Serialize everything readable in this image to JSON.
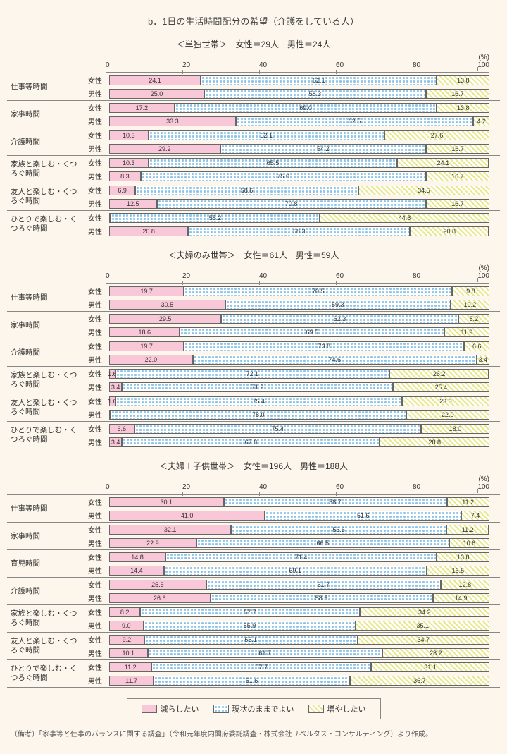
{
  "title": "b．1日の生活時間配分の希望（介護をしている人）",
  "pctLabel": "(%)",
  "axisTicks": [
    "0",
    "20",
    "40",
    "60",
    "80",
    "100"
  ],
  "legend": [
    "減らしたい",
    "現状のままでよい",
    "増やしたい"
  ],
  "note": "（備考）「家事等と仕事のバランスに関する調査」（令和元年度内閣府委託調査・株式会社リベルタス・コンサルティング）より作成。",
  "panels": [
    {
      "subtitle": "＜単独世帯＞　女性＝29人　男性＝24人",
      "cats": [
        {
          "label": "仕事等時間",
          "rows": [
            {
              "g": "女性",
              "v": [
                24.1,
                62.1,
                13.8
              ]
            },
            {
              "g": "男性",
              "v": [
                25.0,
                58.3,
                16.7
              ]
            }
          ]
        },
        {
          "label": "家事時間",
          "rows": [
            {
              "g": "女性",
              "v": [
                17.2,
                69.0,
                13.8
              ]
            },
            {
              "g": "男性",
              "v": [
                33.3,
                62.5,
                4.2
              ]
            }
          ]
        },
        {
          "label": "介護時間",
          "rows": [
            {
              "g": "女性",
              "v": [
                10.3,
                62.1,
                27.6
              ]
            },
            {
              "g": "男性",
              "v": [
                29.2,
                54.2,
                16.7
              ]
            }
          ]
        },
        {
          "label": "家族と楽しむ・くつろぐ時間",
          "rows": [
            {
              "g": "女性",
              "v": [
                10.3,
                65.5,
                24.1
              ]
            },
            {
              "g": "男性",
              "v": [
                8.3,
                75.0,
                16.7
              ]
            }
          ]
        },
        {
          "label": "友人と楽しむ・くつろぐ時間",
          "rows": [
            {
              "g": "女性",
              "v": [
                6.9,
                58.6,
                34.5
              ]
            },
            {
              "g": "男性",
              "v": [
                12.5,
                70.8,
                16.7
              ]
            }
          ]
        },
        {
          "label": "ひとりで楽しむ・くつろぐ時間",
          "rows": [
            {
              "g": "女性",
              "v": [
                0,
                55.2,
                44.8
              ]
            },
            {
              "g": "男性",
              "v": [
                20.8,
                58.3,
                20.8
              ]
            }
          ]
        }
      ]
    },
    {
      "subtitle": "＜夫婦のみ世帯＞　女性＝61人　男性＝59人",
      "cats": [
        {
          "label": "仕事等時間",
          "rows": [
            {
              "g": "女性",
              "v": [
                19.7,
                70.5,
                9.8
              ]
            },
            {
              "g": "男性",
              "v": [
                30.5,
                59.3,
                10.2
              ]
            }
          ]
        },
        {
          "label": "家事時間",
          "rows": [
            {
              "g": "女性",
              "v": [
                29.5,
                62.3,
                8.2
              ]
            },
            {
              "g": "男性",
              "v": [
                18.6,
                69.5,
                11.9
              ]
            }
          ]
        },
        {
          "label": "介護時間",
          "rows": [
            {
              "g": "女性",
              "v": [
                19.7,
                73.8,
                6.6
              ]
            },
            {
              "g": "男性",
              "v": [
                22.0,
                74.6,
                3.4
              ]
            }
          ]
        },
        {
          "label": "家族と楽しむ・くつろぐ時間",
          "rows": [
            {
              "g": "女性",
              "v": [
                1.6,
                72.1,
                26.2
              ]
            },
            {
              "g": "男性",
              "v": [
                3.4,
                71.2,
                25.4
              ]
            }
          ]
        },
        {
          "label": "友人と楽しむ・くつろぐ時間",
          "rows": [
            {
              "g": "女性",
              "v": [
                1.6,
                75.4,
                23.0
              ]
            },
            {
              "g": "男性",
              "v": [
                0,
                78.0,
                22.0
              ]
            }
          ]
        },
        {
          "label": "ひとりで楽しむ・くつろぐ時間",
          "rows": [
            {
              "g": "女性",
              "v": [
                6.6,
                75.4,
                18.0
              ]
            },
            {
              "g": "男性",
              "v": [
                3.4,
                67.8,
                28.8
              ]
            }
          ]
        }
      ]
    },
    {
      "subtitle": "＜夫婦＋子供世帯＞　女性＝196人　男性＝188人",
      "cats": [
        {
          "label": "仕事等時間",
          "rows": [
            {
              "g": "女性",
              "v": [
                30.1,
                58.7,
                11.2
              ]
            },
            {
              "g": "男性",
              "v": [
                41.0,
                51.6,
                7.4
              ]
            }
          ]
        },
        {
          "label": "家事時間",
          "rows": [
            {
              "g": "女性",
              "v": [
                32.1,
                56.6,
                11.2
              ]
            },
            {
              "g": "男性",
              "v": [
                22.9,
                66.5,
                10.6
              ]
            }
          ]
        },
        {
          "label": "育児時間",
          "rows": [
            {
              "g": "女性",
              "v": [
                14.8,
                71.4,
                13.8
              ]
            },
            {
              "g": "男性",
              "v": [
                14.4,
                69.1,
                16.5
              ]
            }
          ]
        },
        {
          "label": "介護時間",
          "rows": [
            {
              "g": "女性",
              "v": [
                25.5,
                61.7,
                12.8
              ]
            },
            {
              "g": "男性",
              "v": [
                26.6,
                58.5,
                14.9
              ]
            }
          ]
        },
        {
          "label": "家族と楽しむ・くつろぐ時間",
          "rows": [
            {
              "g": "女性",
              "v": [
                8.2,
                57.7,
                34.2
              ]
            },
            {
              "g": "男性",
              "v": [
                9.0,
                55.9,
                35.1
              ]
            }
          ]
        },
        {
          "label": "友人と楽しむ・くつろぐ時間",
          "rows": [
            {
              "g": "女性",
              "v": [
                9.2,
                56.1,
                34.7
              ]
            },
            {
              "g": "男性",
              "v": [
                10.1,
                61.7,
                28.2
              ]
            }
          ]
        },
        {
          "label": "ひとりで楽しむ・くつろぐ時間",
          "rows": [
            {
              "g": "女性",
              "v": [
                11.2,
                57.7,
                31.1
              ]
            },
            {
              "g": "男性",
              "v": [
                11.7,
                51.6,
                36.7
              ]
            }
          ]
        }
      ]
    }
  ]
}
